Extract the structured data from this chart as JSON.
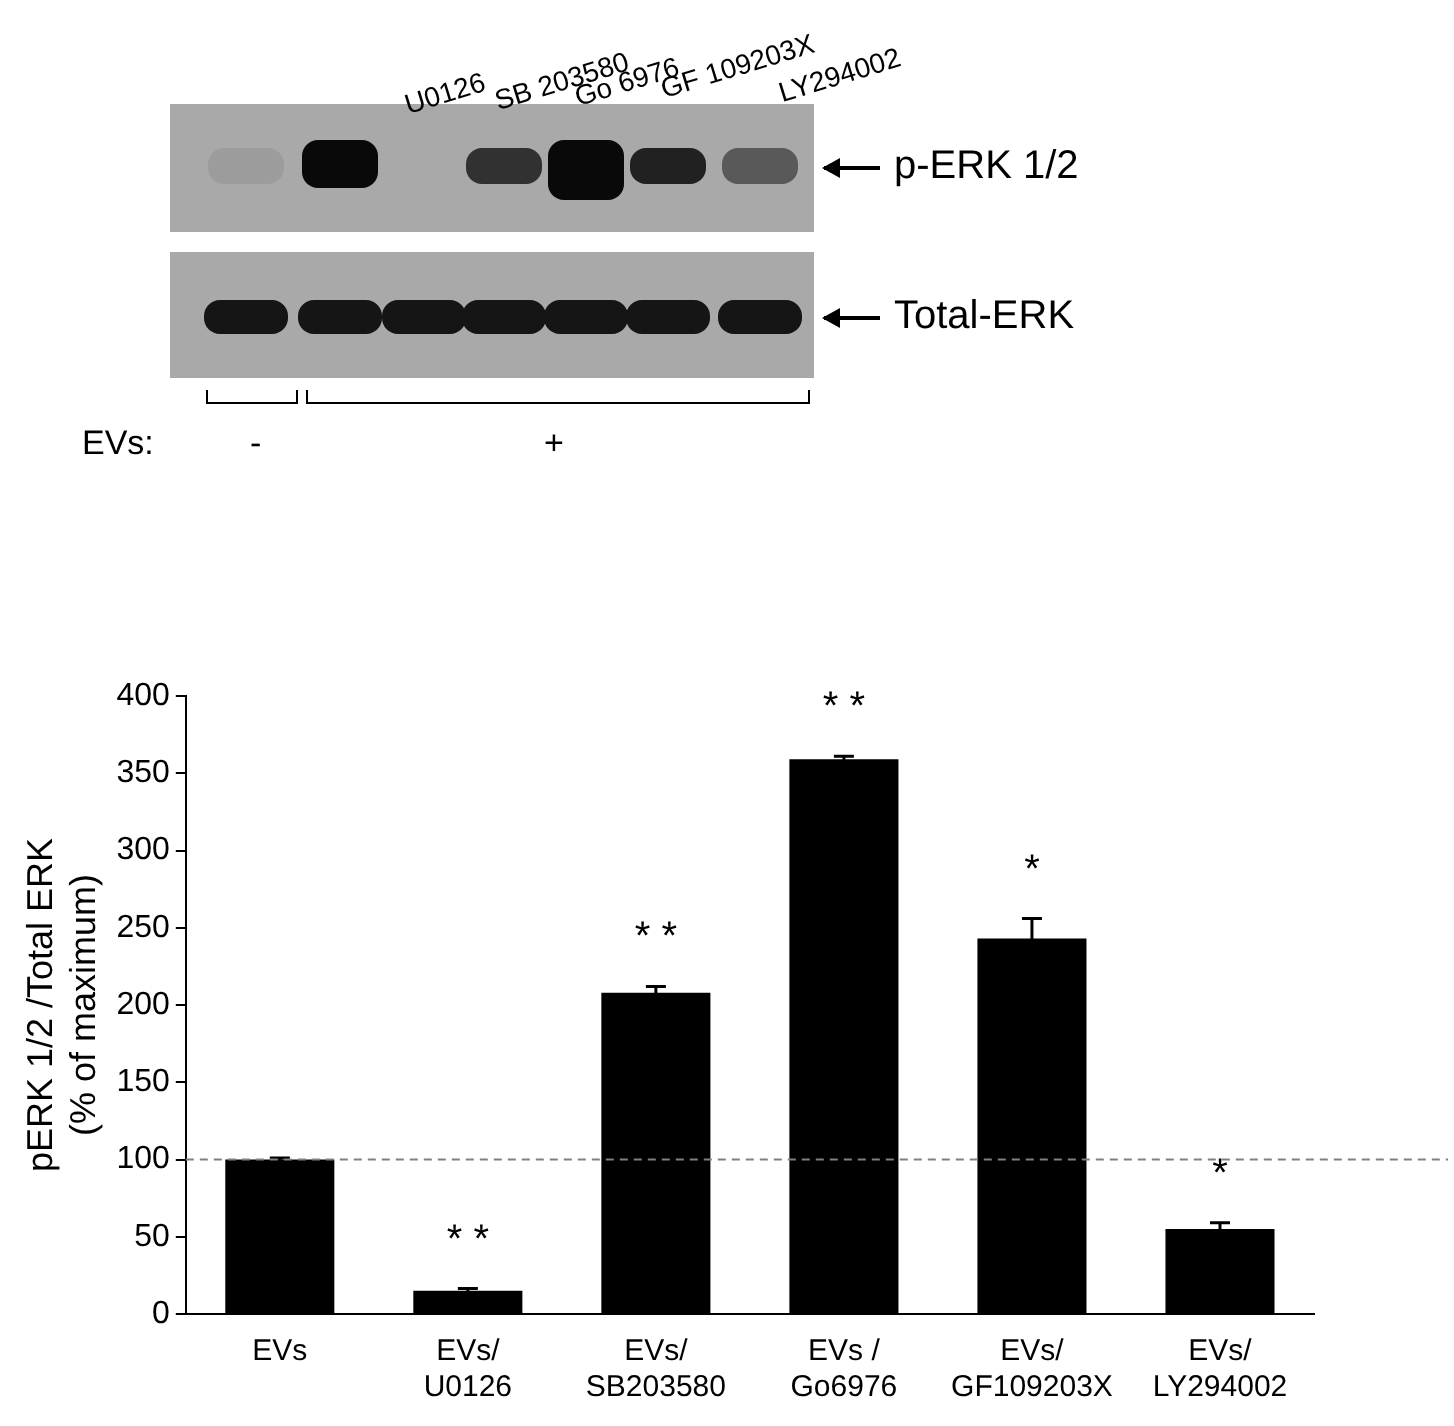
{
  "chart_data": {
    "type": "bar",
    "ylabel": "pERK 1/2 /Total ERK\n(% of maximum)",
    "categories": [
      "EVs",
      "EVs/\nU0126",
      "EVs/\nSB203580",
      "EVs /\nGo6976",
      "EVs/\nGF109203X",
      "EVs/\nLY294002"
    ],
    "values": [
      100,
      15,
      208,
      359,
      243,
      55
    ],
    "errors": [
      1,
      1.5,
      4,
      2,
      13,
      4
    ],
    "color": "#000000",
    "ylim": [
      0,
      400
    ],
    "yticks": [
      0,
      50,
      100,
      150,
      200,
      250,
      300,
      350,
      400
    ],
    "grid": false,
    "legend": false,
    "ref_lines": [
      {
        "axis": "y",
        "value": 100,
        "color": "#808080",
        "line_style": "dashed"
      }
    ],
    "annotations": [
      "U0126",
      "SB 203580",
      "Go 6976",
      "GF 109203X",
      "LY294002",
      "p-ERK 1/2",
      "Total-ERK",
      "EVs:",
      "-",
      "+",
      "* *",
      "* *",
      "* *",
      "*",
      "*"
    ]
  }
}
